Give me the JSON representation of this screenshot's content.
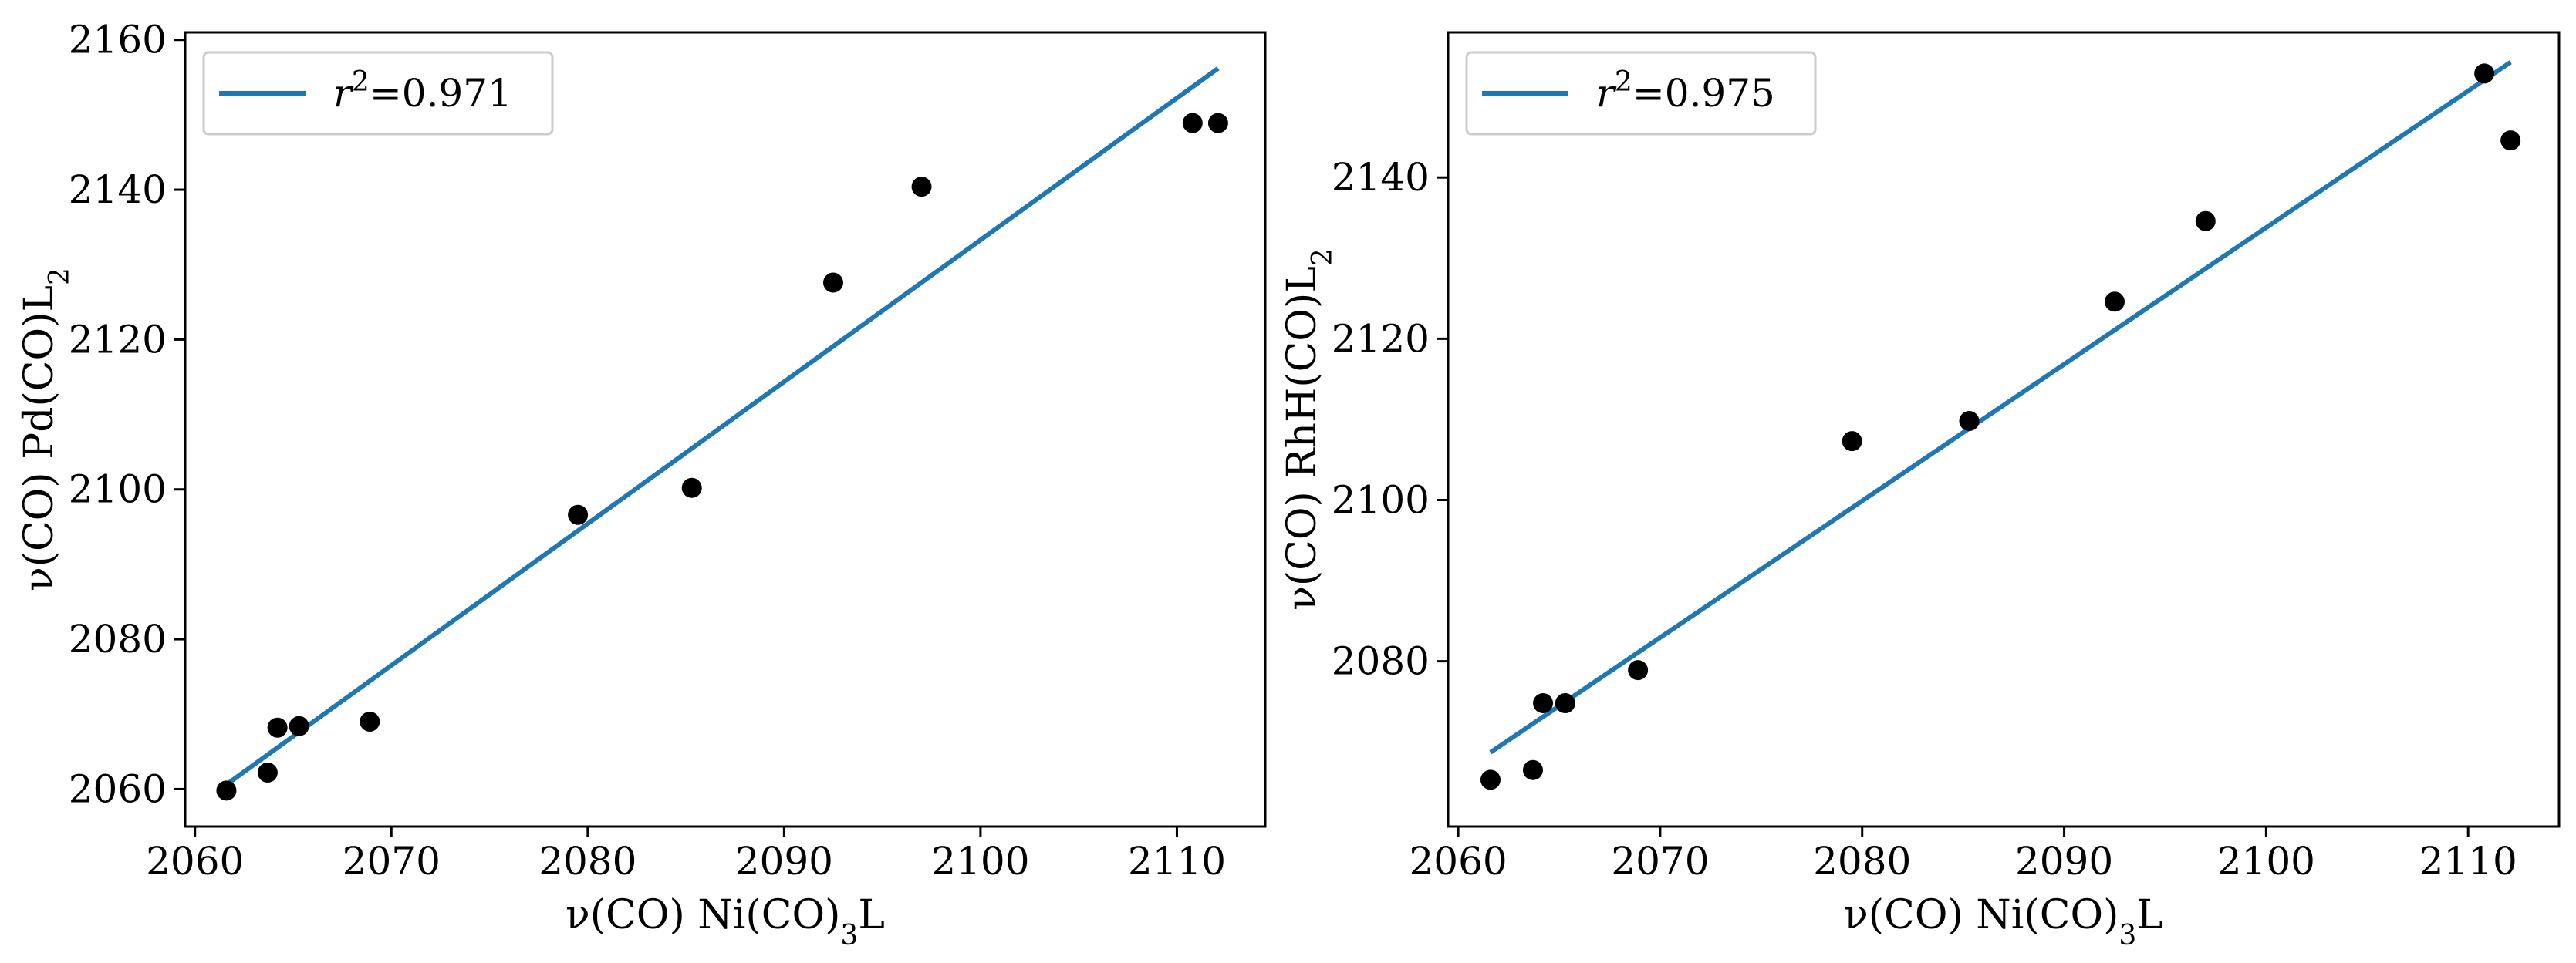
{
  "chart_data": [
    {
      "type": "scatter",
      "xlabel": "ν(CO) Ni(CO)₃L",
      "ylabel": "ν(CO) Pd(CO)L₂",
      "xlim": [
        2059.5,
        2114.5
      ],
      "ylim": [
        2055,
        2161
      ],
      "xticks": [
        2060,
        2070,
        2080,
        2090,
        2100,
        2110
      ],
      "yticks": [
        2060,
        2080,
        2100,
        2120,
        2140,
        2160
      ],
      "grid": false,
      "legend_position": "top-left",
      "series": [
        {
          "type": "scatter",
          "color": "#000000",
          "points": [
            [
              2061.6,
              2059.8
            ],
            [
              2063.7,
              2062.2
            ],
            [
              2064.2,
              2068.2
            ],
            [
              2065.3,
              2068.4
            ],
            [
              2068.9,
              2069.0
            ],
            [
              2079.5,
              2096.6
            ],
            [
              2085.3,
              2100.2
            ],
            [
              2092.5,
              2127.6
            ],
            [
              2097.0,
              2140.4
            ],
            [
              2110.8,
              2148.9
            ],
            [
              2112.1,
              2148.9
            ]
          ]
        },
        {
          "type": "line",
          "name": "r²=0.971",
          "color": "#1f77b4",
          "points": [
            [
              2061.6,
              2060.6
            ],
            [
              2112.1,
              2156.2
            ]
          ]
        }
      ]
    },
    {
      "type": "scatter",
      "xlabel": "ν(CO) Ni(CO)₃L",
      "ylabel": "ν(CO) RhH(CO)L₂",
      "xlim": [
        2059.5,
        2114.5
      ],
      "ylim": [
        2059.5,
        2158
      ],
      "xticks": [
        2060,
        2070,
        2080,
        2090,
        2100,
        2110
      ],
      "yticks": [
        2080,
        2100,
        2120,
        2140
      ],
      "grid": false,
      "legend_position": "top-left",
      "series": [
        {
          "type": "scatter",
          "color": "#000000",
          "points": [
            [
              2061.6,
              2065.3
            ],
            [
              2063.7,
              2066.5
            ],
            [
              2064.2,
              2074.8
            ],
            [
              2065.3,
              2074.8
            ],
            [
              2068.9,
              2078.9
            ],
            [
              2079.5,
              2107.3
            ],
            [
              2085.3,
              2109.8
            ],
            [
              2092.5,
              2124.6
            ],
            [
              2097.0,
              2134.6
            ],
            [
              2110.8,
              2152.9
            ],
            [
              2112.1,
              2144.6
            ]
          ]
        },
        {
          "type": "line",
          "name": "r²=0.975",
          "color": "#1f77b4",
          "points": [
            [
              2061.6,
              2068.7
            ],
            [
              2112.1,
              2154.3
            ]
          ]
        }
      ]
    }
  ]
}
